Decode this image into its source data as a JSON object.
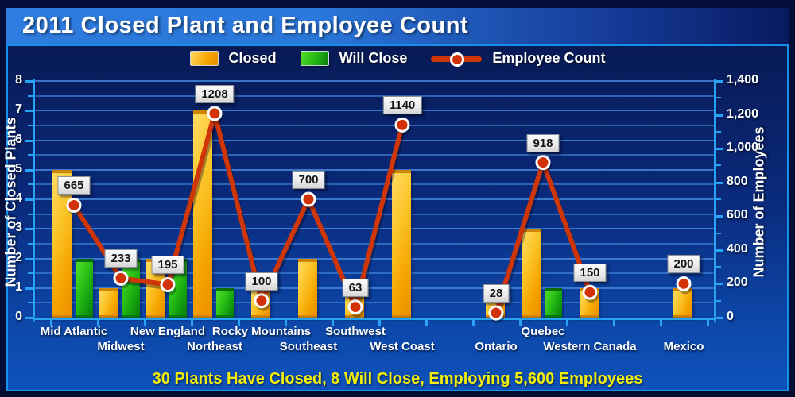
{
  "title": "2011 Closed Plant and Employee Count",
  "caption": "30 Plants Have Closed, 8 Will Close, Employing 5,600 Employees",
  "legend": {
    "closed_label": "Closed",
    "will_close_label": "Will Close",
    "employee_label": "Employee Count"
  },
  "colors": {
    "closed_bar": "#f6a500",
    "will_close_bar": "#1daf12",
    "employee_line": "#ce3507",
    "employee_marker": "#d23108",
    "axis": "#29a3f7",
    "caption_text": "#f2ee0a",
    "title_text": "#ffffff",
    "label_box_bg": "#efefef"
  },
  "chart_data": {
    "type": "bar+line",
    "categories": [
      "Mid Atlantic",
      "Midwest",
      "New England",
      "Northeast",
      "Rocky Mountains",
      "Southeast",
      "Southwest",
      "West Coast",
      "Ontario",
      "Quebec",
      "Western Canada",
      "Mexico"
    ],
    "series": [
      {
        "name": "Closed",
        "type": "bar",
        "axis": "left",
        "values": [
          5,
          1,
          2,
          7,
          1,
          2,
          1,
          5,
          1,
          3,
          1,
          1
        ]
      },
      {
        "name": "Will Close",
        "type": "bar",
        "axis": "left",
        "values": [
          2,
          2,
          2,
          1,
          0,
          0,
          0,
          0,
          0,
          1,
          0,
          0
        ]
      },
      {
        "name": "Employee Count",
        "type": "line",
        "axis": "right",
        "values": [
          665,
          233,
          195,
          1208,
          100,
          700,
          63,
          1140,
          28,
          918,
          150,
          200
        ]
      }
    ],
    "point_labels": [
      "665",
      "233",
      "195",
      "1208",
      "100",
      "700",
      "63",
      "1140",
      "28",
      "918",
      "150",
      "200"
    ],
    "ylabel_left": "Number of Closed Plants",
    "ylabel_right": "Number of Employees",
    "ylim_left": [
      0,
      8
    ],
    "ylim_right": [
      0,
      1400
    ],
    "ytick_step_left": 1,
    "ytick_minor_step_left": 0.5,
    "ytick_step_right": 200,
    "ytick_minor_step_right": 100,
    "grid": "horizontal-half-unit",
    "legend_position": "top-center",
    "gaps_after": [
      "West Coast",
      "Western Canada"
    ],
    "line_breaks_after": [
      "West Coast",
      "Western Canada"
    ],
    "totals": {
      "plants_closed": 30,
      "will_close": 8,
      "employees": 5600
    }
  }
}
